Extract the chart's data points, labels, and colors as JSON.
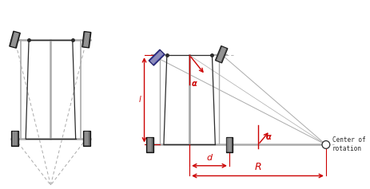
{
  "bg_color": "#ffffff",
  "line_color": "#2a2a2a",
  "red_color": "#cc0000",
  "blue_color": "#3333bb",
  "gray_color": "#aaaaaa",
  "dark_gray": "#555555",
  "medium_gray": "#888888",
  "center_of_rotation_text_line1": "Center of",
  "center_of_rotation_text_line2": "rotation",
  "label_l": "l",
  "label_d": "d",
  "label_R": "R",
  "label_alpha_top": "α",
  "label_alpha_right": "α",
  "figw": 4.64,
  "figh": 2.37,
  "dpi": 100
}
